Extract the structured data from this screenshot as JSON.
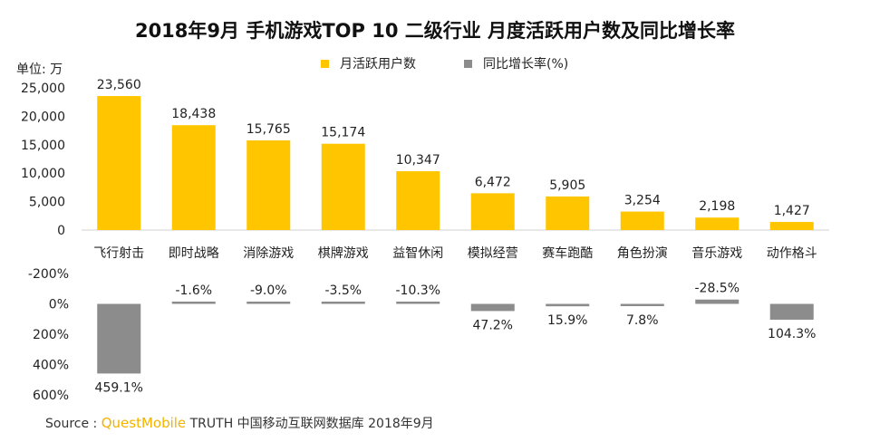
{
  "title": "2018年9月 手机游戏TOP 10 二级行业 月度活跃用户数及同比增长率",
  "unit_label": "单位: 万",
  "legend": [
    {
      "label": "月活跃用户数",
      "color": "#ffc600"
    },
    {
      "label": "同比增长率(%)",
      "color": "#8c8c8c"
    }
  ],
  "source": {
    "prefix": "Source :",
    "brand": "QuestMobile",
    "rest": "TRUTH 中国移动互联网数据库 2018年9月"
  },
  "chart_data": [
    {
      "type": "bar",
      "title": "月活跃用户数",
      "ylabel": "单位: 万",
      "ylim": [
        0,
        25000
      ],
      "yticks": [
        0,
        5000,
        10000,
        15000,
        20000,
        25000
      ],
      "ytick_labels": [
        "0",
        "5,000",
        "10,000",
        "15,000",
        "20,000",
        "25,000"
      ],
      "color": "#ffc600",
      "categories": [
        "飞行射击",
        "即时战略",
        "消除游戏",
        "棋牌游戏",
        "益智休闲",
        "模拟经营",
        "赛车跑酷",
        "角色扮演",
        "音乐游戏",
        "动作格斗"
      ],
      "values": [
        23560,
        18438,
        15765,
        15174,
        10347,
        6472,
        5905,
        3254,
        2198,
        1427
      ],
      "labels": [
        "23,560",
        "18,438",
        "15,765",
        "15,174",
        "10,347",
        "6,472",
        "5,905",
        "3,254",
        "2,198",
        "1,427"
      ]
    },
    {
      "type": "bar",
      "title": "同比增长率(%)",
      "axis_direction": "inverted",
      "ylim": [
        -200,
        600
      ],
      "yticks": [
        -200,
        0,
        200,
        400,
        600
      ],
      "ytick_labels": [
        "-200%",
        "0%",
        "200%",
        "400%",
        "600%"
      ],
      "color": "#8c8c8c",
      "categories": [
        "飞行射击",
        "即时战略",
        "消除游戏",
        "棋牌游戏",
        "益智休闲",
        "模拟经营",
        "赛车跑酷",
        "角色扮演",
        "音乐游戏",
        "动作格斗"
      ],
      "values": [
        459.1,
        -1.6,
        -9.0,
        -3.5,
        -10.3,
        47.2,
        15.9,
        7.8,
        -28.5,
        104.3
      ],
      "labels": [
        "459.1%",
        "-1.6%",
        "-9.0%",
        "-3.5%",
        "-10.3%",
        "47.2%",
        "15.9%",
        "7.8%",
        "-28.5%",
        "104.3%"
      ]
    }
  ]
}
